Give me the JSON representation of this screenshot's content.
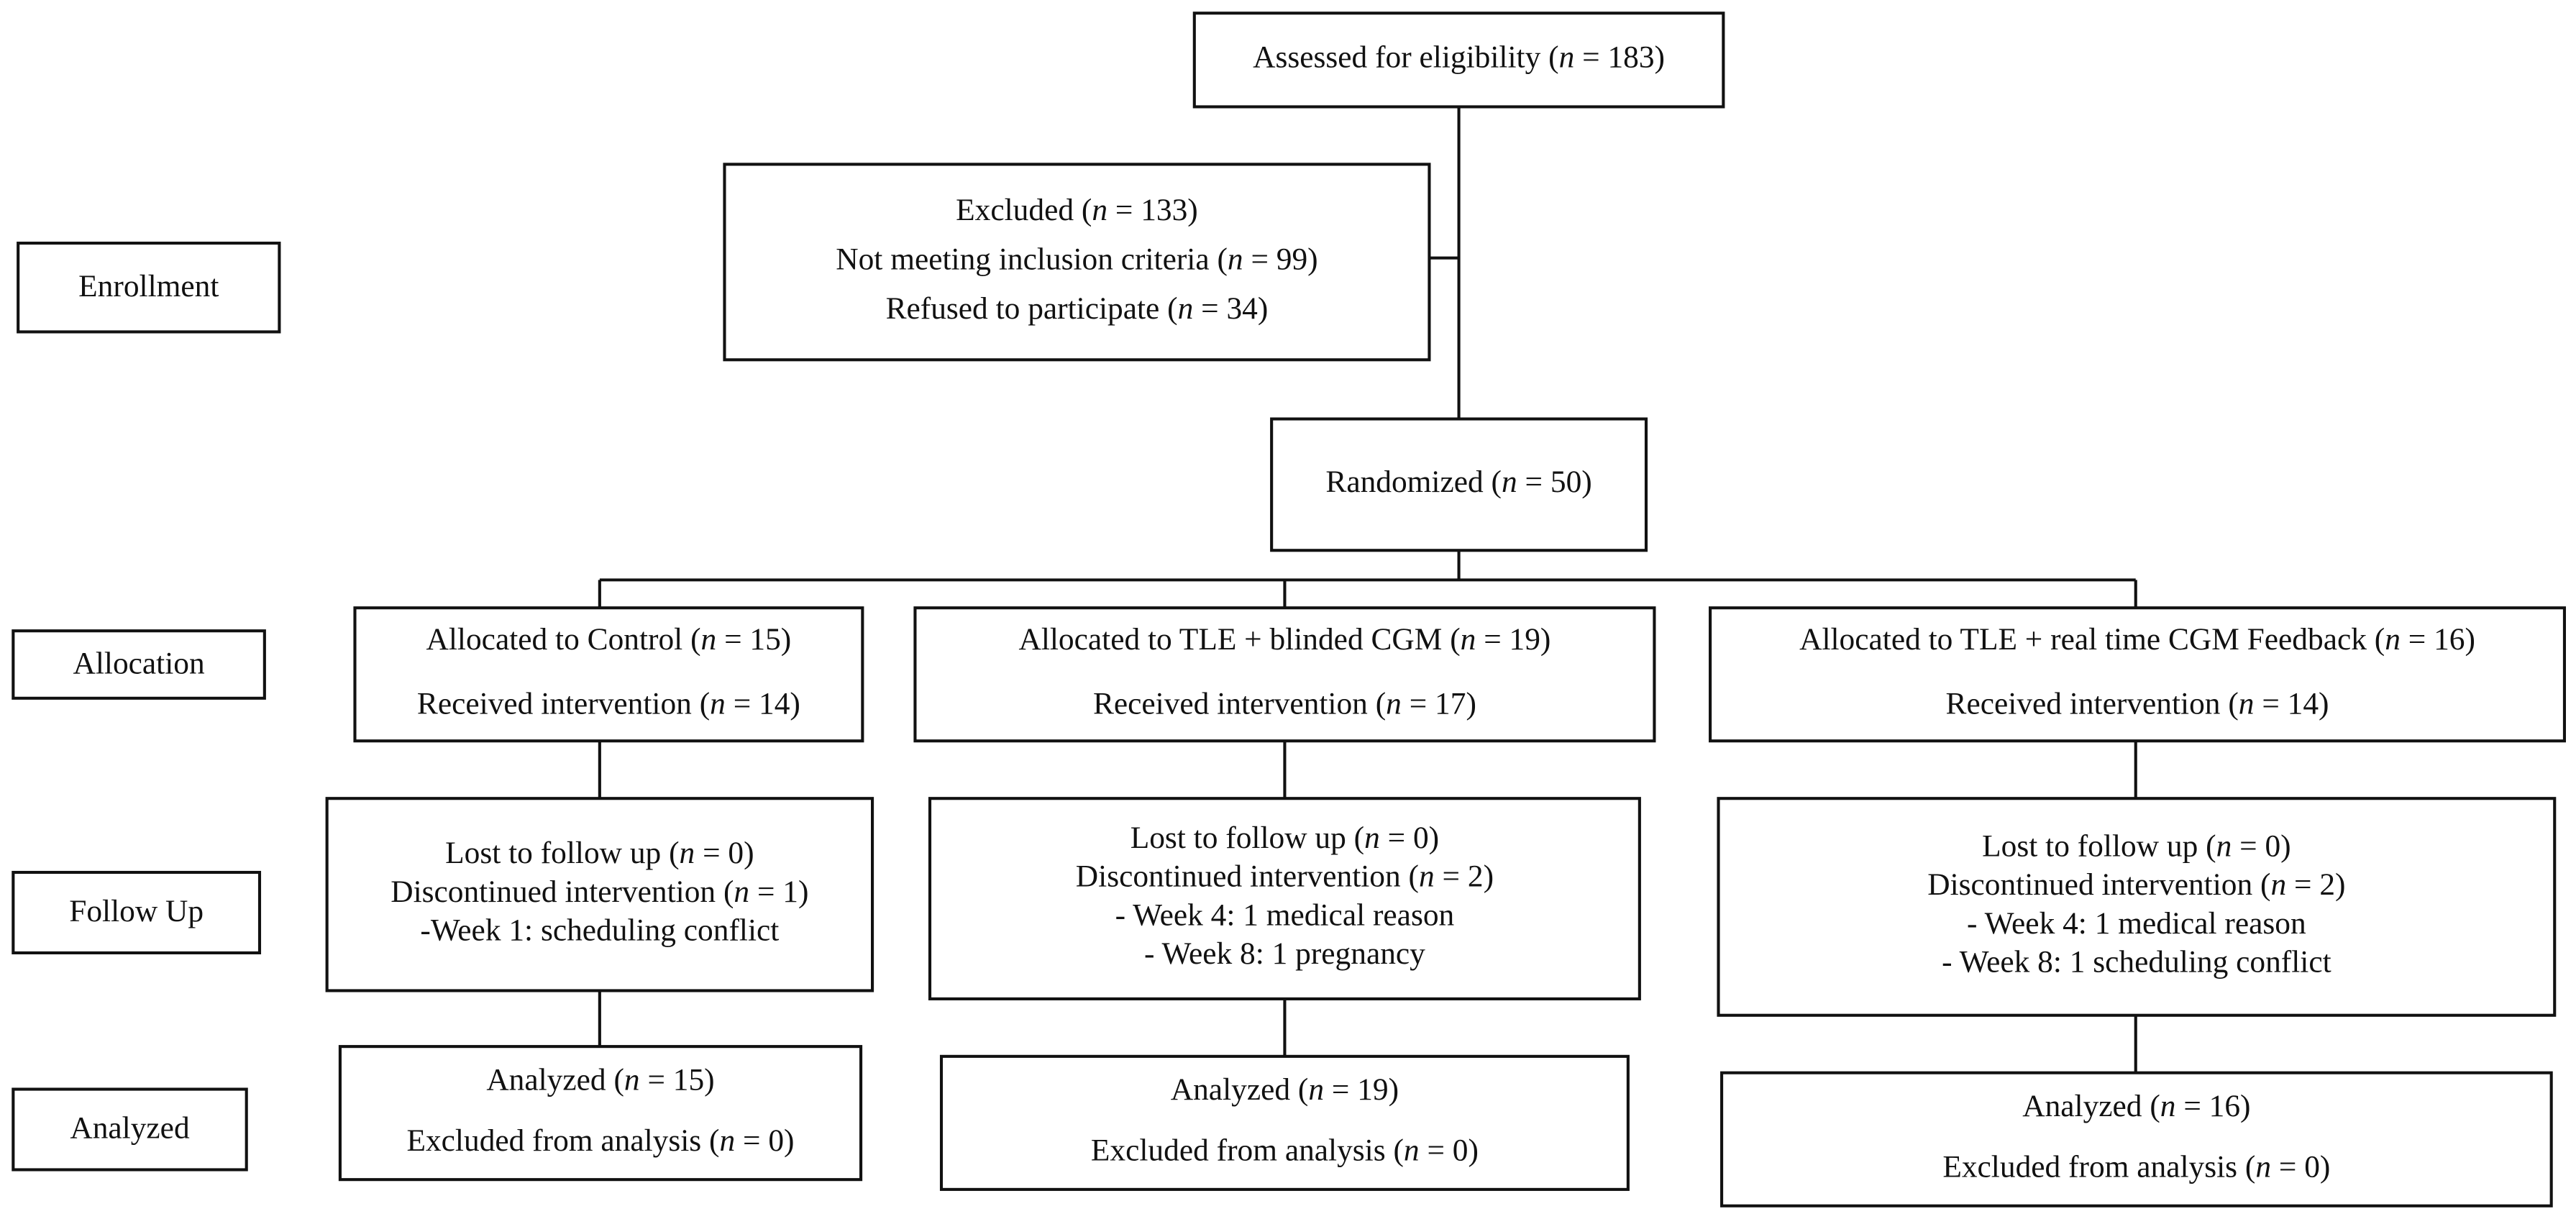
{
  "stages": [
    "Enrollment",
    "Allocation",
    "Follow Up",
    "Analyzed"
  ],
  "nodes": [
    {
      "lines": [
        "Assessed for eligibility (n = 183)"
      ]
    },
    {
      "lines": [
        "Excluded (n = 133)",
        "Not meeting inclusion criteria (n = 99)",
        "Refused to participate (n = 34)"
      ]
    },
    {
      "lines": [
        "Randomized (n = 50)"
      ]
    },
    {
      "lines": [
        "Allocated to Control (n = 15)",
        "Received intervention (n = 14)"
      ]
    },
    {
      "lines": [
        "Allocated to TLE + blinded CGM (n = 19)",
        "Received intervention (n = 17)"
      ]
    },
    {
      "lines": [
        "Allocated to TLE + real time CGM Feedback (n = 16)",
        "Received intervention (n = 14)"
      ]
    },
    {
      "lines": [
        "Lost to follow up (n = 0)",
        "Discontinued intervention (n = 1)",
        "-Week 1: scheduling conflict"
      ]
    },
    {
      "lines": [
        "Lost to follow up (n = 0)",
        "Discontinued intervention (n = 2)",
        "- Week 4: 1 medical reason",
        "- Week 8: 1 pregnancy"
      ]
    },
    {
      "lines": [
        "Lost to follow up (n = 0)",
        "Discontinued intervention (n = 2)",
        "- Week 4: 1 medical reason",
        "- Week 8: 1 scheduling conflict"
      ]
    },
    {
      "lines": [
        "Analyzed (n = 15)",
        "Excluded from analysis (n = 0)"
      ]
    },
    {
      "lines": [
        "Analyzed (n = 19)",
        "Excluded from analysis (n = 0)"
      ]
    },
    {
      "lines": [
        "Analyzed (n = 16)",
        "Excluded from analysis (n = 0)"
      ]
    }
  ]
}
